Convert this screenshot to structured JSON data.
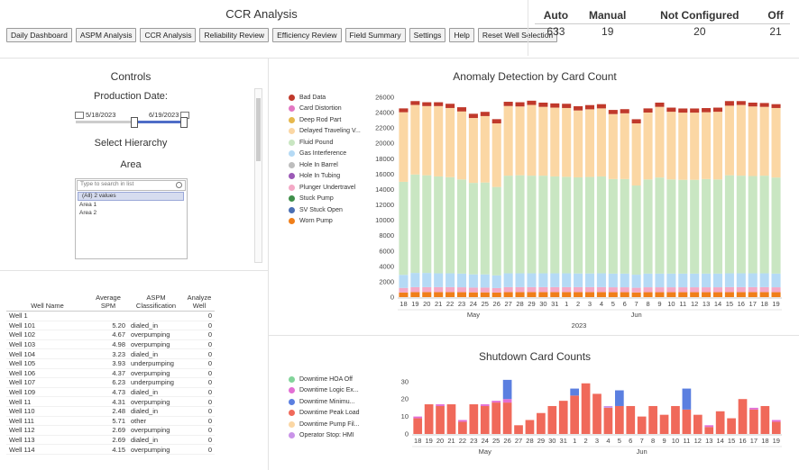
{
  "header": {
    "title": "CCR Analysis",
    "nav": [
      "Daily Dashboard",
      "ASPM Analysis",
      "CCR Analysis",
      "Reliability Review",
      "Efficiency Review",
      "Field Summary",
      "Settings",
      "Help",
      "Reset Well Selection"
    ]
  },
  "status": {
    "labels": [
      "Auto",
      "Manual",
      "Not Configured",
      "Off"
    ],
    "values": [
      "633",
      "19",
      "20",
      "21"
    ]
  },
  "controls": {
    "title": "Controls",
    "production_label": "Production Date:",
    "start_date": "5/18/2023",
    "end_date": "6/19/2023",
    "slider_start_fraction": 0.52,
    "slider_end_fraction": 1.0,
    "hierarchy_label": "Select Hierarchy",
    "area_label": "Area",
    "search_placeholder": "Type to search in list",
    "area_options": [
      "(All) 2 values",
      "Area 1",
      "Area 2"
    ]
  },
  "wells_table": {
    "headers": [
      "Well Name",
      "Average SPM",
      "ASPM Classification",
      "Analyze Well"
    ],
    "rows": [
      [
        "Well 1",
        "",
        "",
        "0"
      ],
      [
        "Well 101",
        "5.20",
        "dialed_in",
        "0"
      ],
      [
        "Well 102",
        "4.67",
        "overpumping",
        "0"
      ],
      [
        "Well 103",
        "4.98",
        "overpumping",
        "0"
      ],
      [
        "Well 104",
        "3.23",
        "dialed_in",
        "0"
      ],
      [
        "Well 105",
        "3.93",
        "underpumping",
        "0"
      ],
      [
        "Well 106",
        "4.37",
        "overpumping",
        "0"
      ],
      [
        "Well 107",
        "6.23",
        "underpumping",
        "0"
      ],
      [
        "Well 109",
        "4.73",
        "dialed_in",
        "0"
      ],
      [
        "Well 11",
        "4.31",
        "overpumping",
        "0"
      ],
      [
        "Well 110",
        "2.48",
        "dialed_in",
        "0"
      ],
      [
        "Well 111",
        "5.71",
        "other",
        "0"
      ],
      [
        "Well 112",
        "2.69",
        "overpumping",
        "0"
      ],
      [
        "Well 113",
        "2.69",
        "dialed_in",
        "0"
      ],
      [
        "Well 114",
        "4.15",
        "overpumping",
        "0"
      ]
    ]
  },
  "anomaly": {
    "title": "Anomaly Detection by Card Count",
    "legend": [
      {
        "label": "Bad Data",
        "color": "#c0392b"
      },
      {
        "label": "Card Distortion",
        "color": "#e377c2"
      },
      {
        "label": "Deep Rod Part",
        "color": "#e6b84d"
      },
      {
        "label": "Delayed Traveling V...",
        "color": "#fbd7a4"
      },
      {
        "label": "Fluid Pound",
        "color": "#c9e6c2"
      },
      {
        "label": "Gas Interference",
        "color": "#b5daf5"
      },
      {
        "label": "Hole In Barrel",
        "color": "#bdbdbd"
      },
      {
        "label": "Hole In Tubing",
        "color": "#9b59b6"
      },
      {
        "label": "Plunger Undertravel",
        "color": "#f4a9c6"
      },
      {
        "label": "Stuck Pump",
        "color": "#3f8f4a"
      },
      {
        "label": "SV Stuck Open",
        "color": "#4a6fb3"
      },
      {
        "label": "Worn Pump",
        "color": "#f07f1a"
      }
    ]
  },
  "shutdown": {
    "title": "Shutdown Card Counts",
    "legend": [
      {
        "label": "Downtime HOA Off",
        "color": "#82d49a"
      },
      {
        "label": "Downtime Logic Ex...",
        "color": "#e36fd4"
      },
      {
        "label": "Downtime Minimu...",
        "color": "#5b7fe0"
      },
      {
        "label": "Downtime Peak Load",
        "color": "#f0695a"
      },
      {
        "label": "Downtime Pump Fil...",
        "color": "#fbd7a4"
      },
      {
        "label": "Operator Stop: HMI",
        "color": "#c993e8"
      }
    ]
  },
  "chart_data": [
    {
      "type": "bar",
      "stacked": true,
      "title": "Anomaly Detection by Card Count",
      "categories": [
        "18",
        "19",
        "20",
        "21",
        "22",
        "23",
        "24",
        "25",
        "26",
        "27",
        "28",
        "29",
        "30",
        "31",
        "1",
        "2",
        "3",
        "4",
        "5",
        "6",
        "7",
        "8",
        "9",
        "10",
        "11",
        "12",
        "13",
        "14",
        "15",
        "16",
        "17",
        "18",
        "19"
      ],
      "month_labels": [
        "May",
        "Jun"
      ],
      "year_label": "2023",
      "ylim": [
        0,
        26000
      ],
      "yticks": [
        0,
        2000,
        4000,
        6000,
        8000,
        10000,
        12000,
        14000,
        16000,
        18000,
        20000,
        22000,
        24000,
        26000
      ],
      "series": [
        {
          "name": "Worn Pump",
          "values": [
            600,
            650,
            650,
            650,
            650,
            640,
            620,
            620,
            590,
            650,
            650,
            650,
            650,
            650,
            650,
            650,
            650,
            650,
            640,
            640,
            610,
            640,
            640,
            640,
            640,
            640,
            640,
            640,
            650,
            650,
            650,
            650,
            640
          ]
        },
        {
          "name": "Plunger Undertravel",
          "values": [
            600,
            650,
            650,
            650,
            650,
            640,
            620,
            620,
            590,
            650,
            650,
            650,
            650,
            650,
            650,
            650,
            650,
            650,
            640,
            640,
            610,
            640,
            640,
            640,
            640,
            640,
            640,
            640,
            650,
            650,
            650,
            650,
            640
          ]
        },
        {
          "name": "Gas Interference",
          "values": [
            1700,
            1850,
            1850,
            1800,
            1800,
            1780,
            1720,
            1720,
            1650,
            1800,
            1800,
            1800,
            1800,
            1800,
            1800,
            1780,
            1780,
            1800,
            1780,
            1780,
            1700,
            1780,
            1780,
            1780,
            1780,
            1780,
            1780,
            1780,
            1800,
            1800,
            1800,
            1800,
            1780
          ]
        },
        {
          "name": "Fluid Pound",
          "values": [
            12100,
            12800,
            12700,
            12600,
            12500,
            12250,
            11900,
            11950,
            11500,
            12700,
            12750,
            12700,
            12700,
            12600,
            12550,
            12500,
            12550,
            12600,
            12300,
            12300,
            11600,
            12250,
            12500,
            12250,
            12200,
            12200,
            12300,
            12250,
            12750,
            12700,
            12650,
            12700,
            12500
          ]
        },
        {
          "name": "Delayed Traveling V...",
          "values": [
            9050,
            9050,
            9000,
            9150,
            9000,
            8840,
            8440,
            8640,
            8270,
            9060,
            8950,
            9200,
            8950,
            8950,
            8950,
            8700,
            8800,
            8850,
            8450,
            8550,
            8080,
            8700,
            9190,
            8800,
            8740,
            8740,
            8690,
            8800,
            9050,
            9200,
            9050,
            8950,
            9040
          ]
        },
        {
          "name": "Bad Data",
          "values": [
            500,
            500,
            500,
            500,
            550,
            550,
            550,
            550,
            550,
            550,
            550,
            550,
            550,
            550,
            550,
            550,
            550,
            550,
            540,
            540,
            540,
            540,
            550,
            540,
            540,
            540,
            540,
            540,
            600,
            500,
            500,
            500,
            500
          ]
        }
      ]
    },
    {
      "type": "bar",
      "stacked": true,
      "title": "Shutdown Card Counts",
      "categories": [
        "18",
        "19",
        "20",
        "21",
        "22",
        "23",
        "24",
        "25",
        "26",
        "27",
        "28",
        "29",
        "30",
        "31",
        "1",
        "2",
        "3",
        "4",
        "5",
        "6",
        "7",
        "8",
        "9",
        "10",
        "11",
        "12",
        "13",
        "14",
        "15",
        "16",
        "17",
        "18",
        "19"
      ],
      "month_labels": [
        "May",
        "Jun"
      ],
      "year_label": "2023",
      "ylim": [
        0,
        33
      ],
      "yticks": [
        0,
        10,
        20,
        30
      ],
      "series": [
        {
          "name": "Downtime Peak Load",
          "values": [
            9,
            17,
            16,
            17,
            7,
            17,
            16,
            18,
            18,
            5,
            8,
            12,
            16,
            19,
            22,
            29,
            23,
            15,
            16,
            16,
            10,
            16,
            11,
            16,
            14,
            11,
            4,
            13,
            9,
            20,
            14,
            16,
            7
          ]
        },
        {
          "name": "Downtime Logic Ex...",
          "values": [
            1,
            0,
            1,
            0,
            1,
            0,
            1,
            1,
            2,
            0,
            0,
            0,
            0,
            0,
            0,
            0,
            0,
            0,
            0,
            0,
            0,
            0,
            0,
            0,
            0,
            0,
            1,
            0,
            0,
            0,
            1,
            0,
            1
          ]
        },
        {
          "name": "Downtime Minimu...",
          "values": [
            0,
            0,
            0,
            0,
            0,
            0,
            0,
            0,
            11,
            0,
            0,
            0,
            0,
            0,
            4,
            0,
            0,
            0,
            9,
            0,
            0,
            0,
            0,
            0,
            12,
            0,
            0,
            0,
            0,
            0,
            0,
            0,
            0
          ]
        },
        {
          "name": "Operator Stop: HMI",
          "values": [
            0,
            0,
            0,
            0,
            0,
            0,
            0,
            0,
            0,
            0,
            0,
            0,
            0,
            0,
            0,
            0,
            0,
            1,
            0,
            0,
            0,
            0,
            0,
            0,
            0,
            0,
            0,
            0,
            0,
            0,
            0,
            0,
            0
          ]
        },
        {
          "name": "Downtime HOA Off",
          "values": [
            0,
            0,
            0,
            0,
            0,
            0,
            0,
            0,
            0,
            0,
            0,
            0,
            0,
            0,
            0,
            0,
            0,
            0,
            0,
            0,
            0,
            0,
            0,
            0,
            0,
            0,
            0,
            0,
            0,
            0,
            0,
            0,
            0
          ]
        },
        {
          "name": "Downtime Pump Fil...",
          "values": [
            0,
            0,
            0,
            0,
            0,
            0,
            0,
            0,
            0,
            0,
            0,
            0,
            0,
            0,
            0,
            0,
            0,
            0,
            0,
            0,
            0,
            0,
            0,
            0,
            0,
            0,
            0,
            0,
            0,
            0,
            0,
            0,
            0
          ]
        }
      ]
    }
  ]
}
